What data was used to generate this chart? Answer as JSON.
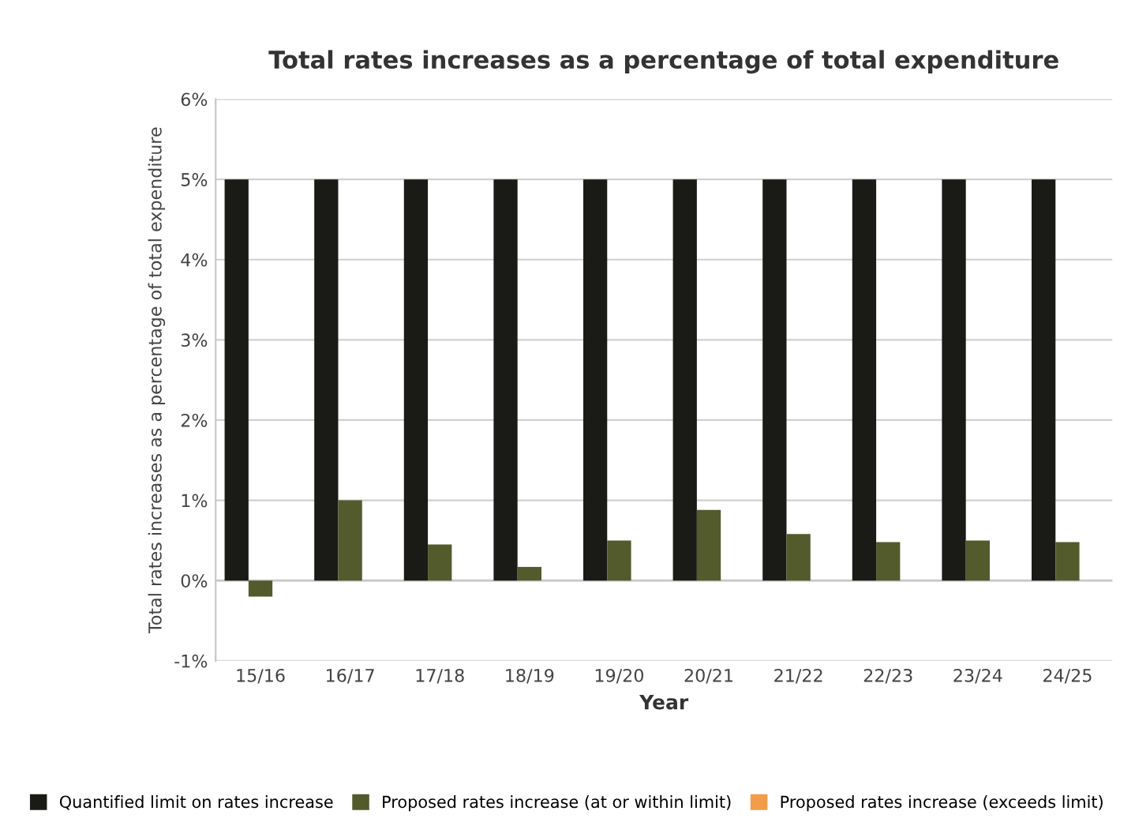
{
  "chart_data": {
    "type": "bar",
    "title": "Total rates increases as a percentage of total expenditure",
    "xlabel": "Year",
    "ylabel": "Total rates increases as a percentage of total expenditure",
    "categories": [
      "15/16",
      "16/17",
      "17/18",
      "18/19",
      "19/20",
      "20/21",
      "21/22",
      "22/23",
      "23/24",
      "24/25"
    ],
    "series": [
      {
        "name": "Quantified limit on rates increase",
        "color": "#1a1a16",
        "values": [
          5,
          5,
          5,
          5,
          5,
          5,
          5,
          5,
          5,
          5
        ]
      },
      {
        "name": "Proposed rates increase (at or within limit)",
        "color": "#535a2c",
        "values": [
          -0.2,
          1.0,
          0.45,
          0.17,
          0.5,
          0.88,
          0.58,
          0.48,
          0.5,
          0.48
        ]
      },
      {
        "name": "Proposed rates increase (exceeds limit)",
        "color": "#f39c4a",
        "values": [
          null,
          null,
          null,
          null,
          null,
          null,
          null,
          null,
          null,
          null
        ]
      }
    ],
    "ylim": [
      -1,
      6
    ],
    "yticks": [
      {
        "value": -1,
        "label": "-1%"
      },
      {
        "value": 0,
        "label": "0%"
      },
      {
        "value": 1,
        "label": "1%"
      },
      {
        "value": 2,
        "label": "2%"
      },
      {
        "value": 3,
        "label": "3%"
      },
      {
        "value": 4,
        "label": "4%"
      },
      {
        "value": 5,
        "label": "5%"
      },
      {
        "value": 6,
        "label": "6%"
      }
    ],
    "grid": "y",
    "legend": "bottom"
  }
}
